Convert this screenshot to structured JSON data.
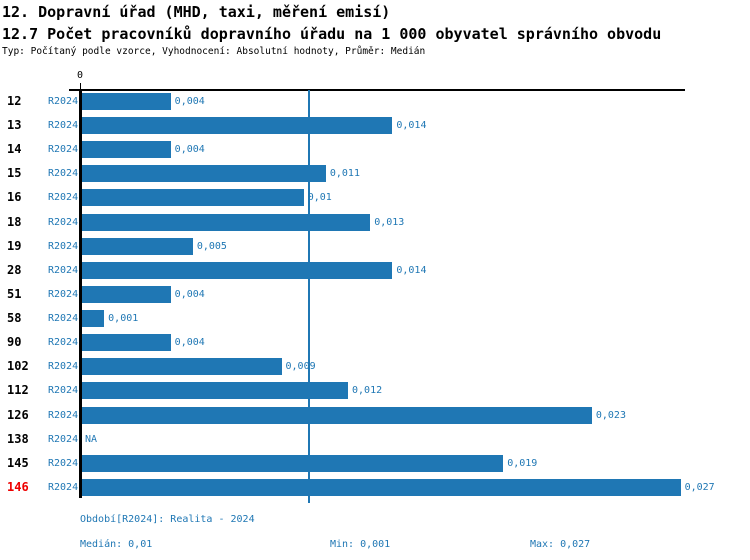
{
  "header": {
    "title1": "12. Dopravní úřad (MHD, taxi, měření emisí)",
    "title2": "12.7 Počet pracovníků dopravního úřadu na 1 000 obyvatel správního obvodu",
    "subtitle": "Typ: Počítaný podle vzorce, Vyhodnocení: Absolutní hodnoty, Průměr: Medián"
  },
  "chart_data": {
    "type": "bar",
    "orientation": "horizontal",
    "title": "12.7 Počet pracovníků dopravního úřadu na 1 000 obyvatel správního obvodu",
    "categories": [
      "12",
      "13",
      "14",
      "15",
      "16",
      "18",
      "19",
      "28",
      "51",
      "58",
      "90",
      "102",
      "112",
      "126",
      "138",
      "145",
      "146"
    ],
    "series": [
      {
        "name": "R2024",
        "values": [
          0.004,
          0.014,
          0.004,
          0.011,
          0.01,
          0.013,
          0.005,
          0.014,
          0.004,
          0.001,
          0.004,
          0.009,
          0.012,
          0.023,
          null,
          0.019,
          0.027
        ],
        "labels": [
          "0,004",
          "0,014",
          "0,004",
          "0,011",
          "0,01",
          "0,013",
          "0,005",
          "0,014",
          "0,004",
          "0,001",
          "0,004",
          "0,009",
          "0,012",
          "0,023",
          "NA",
          "0,019",
          "0,027"
        ]
      }
    ],
    "highlighted_category": "146",
    "median_line_value": 0.0102,
    "axis": {
      "zero_label": "0",
      "xlim": [
        0,
        0.0272
      ],
      "grid": false
    },
    "colors": {
      "bar": "#1f77b4",
      "median_line": "#1f77b4",
      "label_text": "#1f77b4",
      "category_text": "#000000",
      "highlight_text": "#ee0000"
    }
  },
  "footer": {
    "period": "Období[R2024]: Realita - 2024",
    "median": "Medián: 0,01",
    "min": "Min: 0,001",
    "max": "Max: 0,027"
  }
}
